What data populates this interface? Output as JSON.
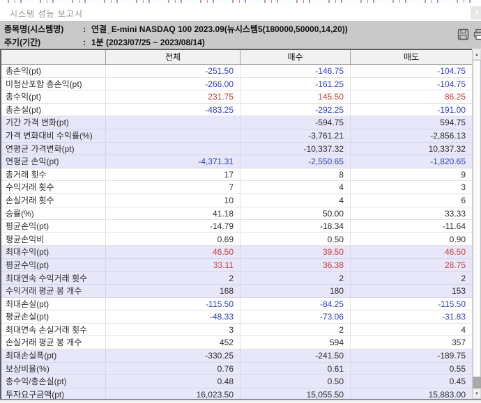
{
  "window": {
    "title": "시스템 성능 보고서",
    "close_glyph": "x"
  },
  "info": {
    "rows": [
      {
        "label": "종목명(시스템명)",
        "colon": ":",
        "value": "연결_E-mini NASDAQ 100 2023.09(뉴시스템5(180000,50000,14,20))"
      },
      {
        "label": "주기(기간)",
        "colon": ":",
        "value": "1분 (2023/07/25 ~ 2023/08/14)"
      }
    ],
    "icon_names": [
      "save-icon",
      "print-icon"
    ]
  },
  "colors": {
    "blue": "#2f3fc3",
    "red": "#c8403a",
    "black": "#2e2e2e",
    "lavender_row": "#e7e7f9",
    "info_bg": "#c9c9c9",
    "header_bg": "#f1f1f1"
  },
  "scrollbar": {
    "up_glyph": "▲",
    "down_glyph": "▼"
  },
  "table": {
    "columns": [
      "",
      "전체",
      "매수",
      "매도"
    ],
    "rows": [
      {
        "label": "총손익(pt)",
        "values": [
          "-251.50",
          "-146.75",
          "-104.75"
        ],
        "color": "blue",
        "band": "w"
      },
      {
        "label": "미청산포함 총손익(pt)",
        "values": [
          "-266.00",
          "-161.25",
          "-104.75"
        ],
        "color": "blue",
        "band": "w"
      },
      {
        "label": "총수익(pt)",
        "values": [
          "231.75",
          "145.50",
          "86.25"
        ],
        "color": "red",
        "band": "w"
      },
      {
        "label": "총손실(pt)",
        "values": [
          "-483.25",
          "-292.25",
          "-191.00"
        ],
        "color": "blue",
        "band": "w"
      },
      {
        "label": "기간 가격 변화(pt)",
        "values": [
          "",
          "-594.75",
          "594.75"
        ],
        "color": "black",
        "band": "l"
      },
      {
        "label": "가격 변화대비 수익률(%)",
        "values": [
          "",
          "-3,761.21",
          "-2,856.13"
        ],
        "color": "black",
        "band": "l"
      },
      {
        "label": "연평균 가격변화(pt)",
        "values": [
          "",
          "-10,337.32",
          "10,337.32"
        ],
        "color": "black",
        "band": "l"
      },
      {
        "label": "연평균 손익(pt)",
        "values": [
          "-4,371.31",
          "-2,550.65",
          "-1,820.65"
        ],
        "color": "blue",
        "band": "l"
      },
      {
        "label": "총거래 횟수",
        "values": [
          "17",
          "8",
          "9"
        ],
        "color": "black",
        "band": "w"
      },
      {
        "label": "수익거래 횟수",
        "values": [
          "7",
          "4",
          "3"
        ],
        "color": "black",
        "band": "w"
      },
      {
        "label": "손실거래 횟수",
        "values": [
          "10",
          "4",
          "6"
        ],
        "color": "black",
        "band": "w"
      },
      {
        "label": "승률(%)",
        "values": [
          "41.18",
          "50.00",
          "33.33"
        ],
        "color": "black",
        "band": "w"
      },
      {
        "label": "평균손익(pt)",
        "values": [
          "-14.79",
          "-18.34",
          "-11.64"
        ],
        "color": "black",
        "band": "w"
      },
      {
        "label": "평균손익비",
        "values": [
          "0.69",
          "0.50",
          "0.90"
        ],
        "color": "black",
        "band": "w"
      },
      {
        "label": "최대수익(pt)",
        "values": [
          "46.50",
          "39.50",
          "46.50"
        ],
        "color": "red",
        "band": "l"
      },
      {
        "label": "평균수익(pt)",
        "values": [
          "33.11",
          "36.38",
          "28.75"
        ],
        "color": "red",
        "band": "l"
      },
      {
        "label": "최대연속 수익거래 횟수",
        "values": [
          "2",
          "2",
          "2"
        ],
        "color": "black",
        "band": "l"
      },
      {
        "label": "수익거래 평균 봉 개수",
        "values": [
          "168",
          "180",
          "153"
        ],
        "color": "black",
        "band": "l"
      },
      {
        "label": "최대손실(pt)",
        "values": [
          "-115.50",
          "-84.25",
          "-115.50"
        ],
        "color": "blue",
        "band": "w"
      },
      {
        "label": "평균손실(pt)",
        "values": [
          "-48.33",
          "-73.06",
          "-31.83"
        ],
        "color": "blue",
        "band": "w"
      },
      {
        "label": "최대연속 손실거래 횟수",
        "values": [
          "3",
          "2",
          "4"
        ],
        "color": "black",
        "band": "w"
      },
      {
        "label": "손실거래 평균 봉 개수",
        "values": [
          "452",
          "594",
          "357"
        ],
        "color": "black",
        "band": "w"
      },
      {
        "label": "최대손실폭(pt)",
        "values": [
          "-330.25",
          "-241.50",
          "-189.75"
        ],
        "color": "black",
        "band": "l"
      },
      {
        "label": "보상비율(%)",
        "values": [
          "0.76",
          "0.61",
          "0.55"
        ],
        "color": "black",
        "band": "l"
      },
      {
        "label": "총수익/총손실(pt)",
        "values": [
          "0.48",
          "0.50",
          "0.45"
        ],
        "color": "black",
        "band": "l"
      },
      {
        "label": "투자요구금액(pt)",
        "values": [
          "16,023.50",
          "15,055.50",
          "15,883.00"
        ],
        "color": "black",
        "band": "l"
      }
    ]
  }
}
